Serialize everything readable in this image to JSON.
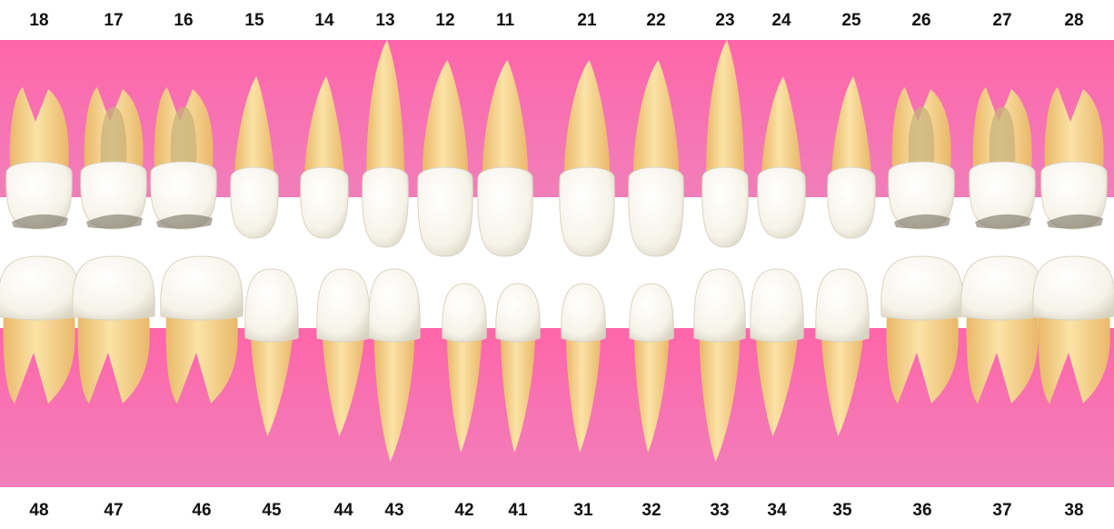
{
  "colors": {
    "gum_top": "#ff66aa",
    "gum_bottom": "#f07fb9",
    "crown_light": "#f6f3e9",
    "crown_shade": "#d9d4c2",
    "root_light": "#fbe3a6",
    "root_dark": "#e9b86a",
    "pulp": "#c8b27a",
    "background": "#ffffff",
    "number_text": "#111111"
  },
  "upper_teeth": [
    {
      "number": "18",
      "type": "molar"
    },
    {
      "number": "17",
      "type": "molar"
    },
    {
      "number": "16",
      "type": "molar"
    },
    {
      "number": "15",
      "type": "premolar"
    },
    {
      "number": "14",
      "type": "premolar"
    },
    {
      "number": "13",
      "type": "canine"
    },
    {
      "number": "12",
      "type": "incisor"
    },
    {
      "number": "11",
      "type": "incisor"
    },
    {
      "number": "21",
      "type": "incisor"
    },
    {
      "number": "22",
      "type": "incisor"
    },
    {
      "number": "23",
      "type": "canine"
    },
    {
      "number": "24",
      "type": "premolar"
    },
    {
      "number": "25",
      "type": "premolar"
    },
    {
      "number": "26",
      "type": "molar"
    },
    {
      "number": "27",
      "type": "molar"
    },
    {
      "number": "28",
      "type": "molar"
    }
  ],
  "lower_teeth": [
    {
      "number": "48",
      "type": "molar"
    },
    {
      "number": "47",
      "type": "molar"
    },
    {
      "number": "46",
      "type": "molar"
    },
    {
      "number": "45",
      "type": "premolar"
    },
    {
      "number": "44",
      "type": "premolar"
    },
    {
      "number": "43",
      "type": "canine"
    },
    {
      "number": "42",
      "type": "incisor"
    },
    {
      "number": "41",
      "type": "incisor"
    },
    {
      "number": "31",
      "type": "incisor"
    },
    {
      "number": "32",
      "type": "incisor"
    },
    {
      "number": "33",
      "type": "canine"
    },
    {
      "number": "34",
      "type": "premolar"
    },
    {
      "number": "35",
      "type": "premolar"
    },
    {
      "number": "36",
      "type": "molar"
    },
    {
      "number": "37",
      "type": "molar"
    },
    {
      "number": "38",
      "type": "molar"
    }
  ]
}
